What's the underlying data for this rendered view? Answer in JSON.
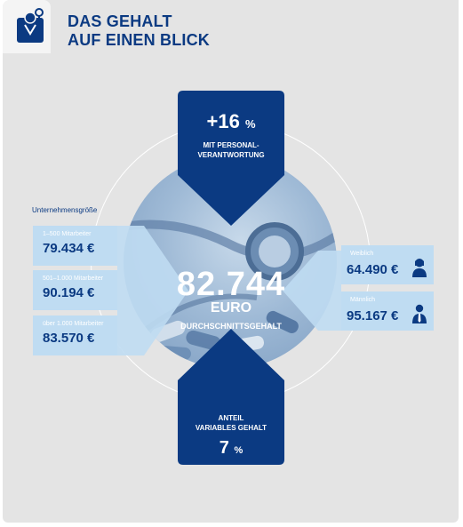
{
  "header": {
    "title_line1": "DAS GEHALT",
    "title_line2": "AUF EINEN BLICK",
    "icon": "doctor-icon"
  },
  "top_arrow": {
    "value": "+16",
    "unit": "%",
    "caption_line1": "MIT PERSONAL-",
    "caption_line2": "VERANTWORTUNG"
  },
  "center": {
    "value": "82.744",
    "currency": "EURO",
    "label": "DURCHSCHNITTSGEHALT"
  },
  "bottom_arrow": {
    "caption_line1": "ANTEIL",
    "caption_line2": "VARIABLES GEHALT",
    "value": "7",
    "unit": "%"
  },
  "company_size": {
    "heading": "Unternehmensgröße",
    "items": [
      {
        "label": "1–500 Mitarbeiter",
        "value": "79.434 €"
      },
      {
        "label": "501–1.000 Mitarbeiter",
        "value": "90.194 €"
      },
      {
        "label": "über 1.000 Mitarbeiter",
        "value": "83.570 €"
      }
    ]
  },
  "gender": {
    "items": [
      {
        "label": "Weiblich",
        "value": "64.490 €",
        "icon": "female-person-icon"
      },
      {
        "label": "Männlich",
        "value": "95.167 €",
        "icon": "male-person-icon"
      }
    ]
  },
  "colors": {
    "navy": "#0b3a82",
    "light_blue": "#bfdcf2",
    "background": "#e4e4e4"
  }
}
